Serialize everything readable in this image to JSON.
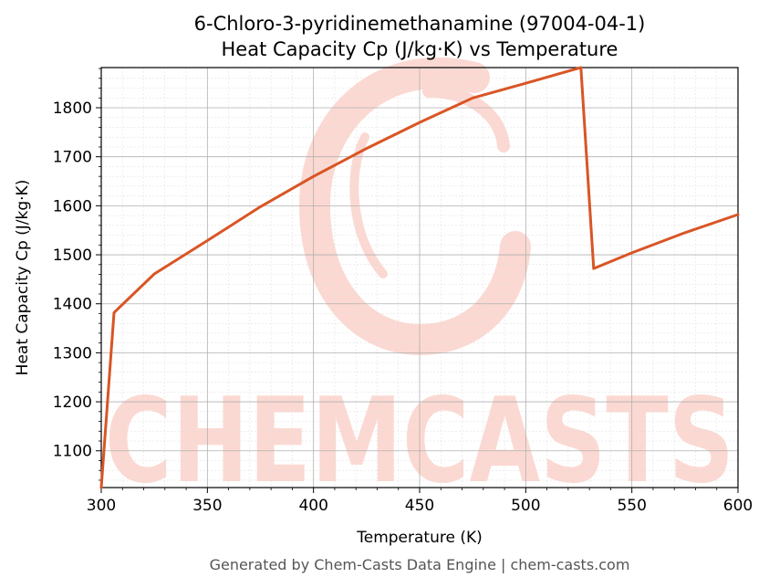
{
  "chart_data": {
    "type": "line",
    "title": "6-Chloro-3-pyridinemethanamine (97004-04-1)",
    "subtitle": "Heat Capacity Cp (J/kg·K) vs Temperature",
    "xlabel": "Temperature (K)",
    "ylabel": "Heat Capacity Cp (J/kg·K)",
    "xlim": [
      300,
      600
    ],
    "ylim": [
      1025,
      1882
    ],
    "xticks": [
      300,
      350,
      400,
      450,
      500,
      550,
      600
    ],
    "yticks": [
      1100,
      1200,
      1300,
      1400,
      1500,
      1600,
      1700,
      1800
    ],
    "grid": true,
    "line_color": "#d95525",
    "series": [
      {
        "x": [
          300,
          306,
          325,
          350,
          375,
          400,
          425,
          450,
          475,
          500,
          526,
          532,
          550,
          575,
          600
        ],
        "y": [
          1025,
          1382,
          1461,
          1529,
          1598,
          1660,
          1717,
          1770,
          1820,
          1850,
          1882,
          1472,
          1504,
          1545,
          1582
        ]
      }
    ],
    "watermark": "CHEMCASTS"
  },
  "footer": "Generated by Chem-Casts Data Engine | chem-casts.com"
}
